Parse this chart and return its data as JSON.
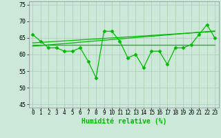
{
  "x": [
    0,
    1,
    2,
    3,
    4,
    5,
    6,
    7,
    8,
    9,
    10,
    11,
    12,
    13,
    14,
    15,
    16,
    17,
    18,
    19,
    20,
    21,
    22,
    23
  ],
  "y_jagged": [
    66,
    64,
    62,
    62,
    61,
    61,
    62,
    58,
    53,
    67,
    67,
    64,
    59,
    60,
    56,
    61,
    61,
    57,
    62,
    62,
    63,
    66,
    69,
    65
  ],
  "y_smooth1": [
    63.0,
    63.0,
    63.0,
    63.0,
    63.0,
    63.0,
    63.0,
    63.0,
    63.0,
    63.0,
    63.0,
    63.0,
    63.0,
    63.0,
    63.0,
    63.0,
    63.0,
    63.0,
    63.0,
    63.0,
    63.0,
    63.0,
    63.0,
    63.0
  ],
  "y_smooth2": [
    62.5,
    62.7,
    62.9,
    63.1,
    63.3,
    63.5,
    63.7,
    63.9,
    64.1,
    64.3,
    64.5,
    64.7,
    64.9,
    65.1,
    65.3,
    65.5,
    65.7,
    65.9,
    66.1,
    66.3,
    66.5,
    66.7,
    66.9,
    67.1
  ],
  "y_smooth3": [
    63.5,
    63.65,
    63.8,
    63.95,
    64.1,
    64.25,
    64.4,
    64.55,
    64.7,
    64.85,
    65.0,
    65.15,
    65.3,
    65.45,
    65.6,
    65.75,
    65.9,
    66.05,
    66.2,
    66.35,
    66.5,
    66.65,
    66.8,
    66.95
  ],
  "ylim": [
    44,
    76
  ],
  "xlim": [
    -0.5,
    23.5
  ],
  "yticks": [
    45,
    50,
    55,
    60,
    65,
    70,
    75
  ],
  "xlabel": "Humidité relative (%)",
  "line_color": "#00bb00",
  "bg_color": "#cce8d8",
  "grid_color": "#aaccaa",
  "marker": "D",
  "markersize": 2.5,
  "linewidth": 0.9,
  "xlabel_fontsize": 7,
  "tick_fontsize": 6
}
